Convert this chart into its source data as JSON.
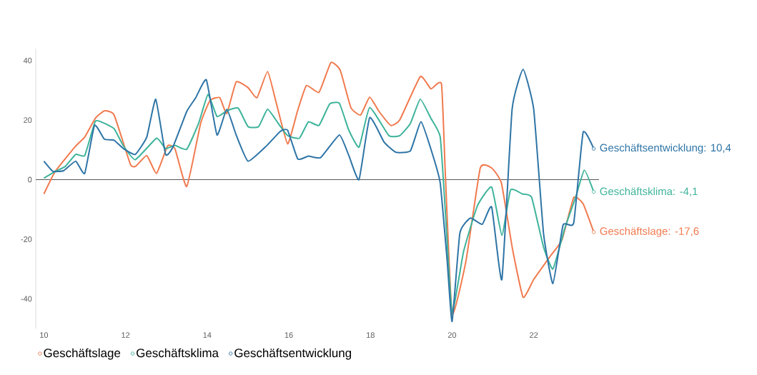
{
  "chart_data": {
    "type": "line",
    "series": [
      {
        "name": "Geschäftslage",
        "color": "#f07a4e",
        "x": [
          2010.0,
          2010.28,
          2010.78,
          2011.0,
          2011.26,
          2011.48,
          2011.72,
          2012.12,
          2012.26,
          2012.52,
          2012.76,
          2013.03,
          2013.21,
          2013.5,
          2013.84,
          2014.07,
          2014.31,
          2014.48,
          2014.71,
          2015.0,
          2015.22,
          2015.48,
          2015.69,
          2015.97,
          2016.21,
          2016.43,
          2016.74,
          2017.03,
          2017.26,
          2017.52,
          2017.76,
          2017.98,
          2018.21,
          2018.5,
          2018.72,
          2019.22,
          2019.48,
          2019.74,
          2019.83,
          2020.0,
          2020.34,
          2020.69,
          2020.97,
          2021.21,
          2021.48,
          2021.74,
          2022.0,
          2022.41,
          2022.69,
          2022.98,
          2023.21,
          2023.47
        ],
        "values": [
          -4.8,
          2.8,
          11.3,
          14.3,
          20.6,
          23.1,
          21.7,
          5.1,
          4.6,
          8.1,
          2.1,
          11.3,
          10.4,
          -2.3,
          18.9,
          26.6,
          27.5,
          22.2,
          32.8,
          30.9,
          27.5,
          36.3,
          25.9,
          12.0,
          22.9,
          31.6,
          29.3,
          39.3,
          36.7,
          24.2,
          21.7,
          27.7,
          22.9,
          18.2,
          20.1,
          34.6,
          30.5,
          32.1,
          3.5,
          -45.0,
          -27.3,
          3.9,
          3.9,
          -1.2,
          -23.3,
          -39.5,
          -33.5,
          -25.6,
          -20.3,
          -6.0,
          -8.1,
          -17.6
        ]
      },
      {
        "name": "Geschäftsklima",
        "color": "#3db39a",
        "x": [
          2010.0,
          2010.28,
          2010.52,
          2010.78,
          2011.0,
          2011.26,
          2011.48,
          2011.72,
          2011.95,
          2012.24,
          2012.76,
          2012.98,
          2013.21,
          2013.5,
          2013.79,
          2014.02,
          2014.24,
          2014.48,
          2014.76,
          2015.0,
          2015.26,
          2015.48,
          2015.74,
          2015.97,
          2016.26,
          2016.48,
          2016.74,
          2017.0,
          2017.24,
          2017.47,
          2017.72,
          2017.98,
          2018.45,
          2018.72,
          2018.98,
          2019.22,
          2019.48,
          2019.71,
          2019.84,
          2020.0,
          2020.28,
          2020.62,
          2020.97,
          2021.22,
          2021.43,
          2021.72,
          2021.95,
          2022.24,
          2022.47,
          2022.76,
          2023.03,
          2023.24,
          2023.47
        ],
        "values": [
          0.5,
          2.8,
          4.4,
          8.5,
          8.1,
          19.6,
          18.9,
          17.1,
          11.3,
          6.7,
          13.9,
          10.4,
          11.5,
          10.2,
          18.9,
          28.6,
          21.2,
          23.1,
          24.0,
          17.8,
          17.8,
          23.6,
          18.9,
          14.8,
          13.9,
          19.4,
          18.2,
          25.4,
          25.6,
          16.6,
          10.9,
          24.2,
          14.8,
          14.8,
          18.9,
          27.0,
          20.6,
          14.3,
          -11.8,
          -44.6,
          -24.2,
          -8.8,
          -2.5,
          -18.7,
          -3.5,
          -4.8,
          -6.0,
          -22.6,
          -30.0,
          -16.4,
          -5.8,
          3.2,
          -4.1
        ]
      },
      {
        "name": "Geschäftsentwicklung",
        "color": "#2e74a6",
        "x": [
          2010.0,
          2010.22,
          2010.48,
          2010.78,
          2011.0,
          2011.24,
          2011.48,
          2011.72,
          2011.95,
          2012.24,
          2012.52,
          2012.74,
          2012.98,
          2013.16,
          2013.5,
          2013.72,
          2013.98,
          2014.24,
          2014.48,
          2014.71,
          2015.0,
          2015.45,
          2015.79,
          2015.97,
          2016.22,
          2016.48,
          2016.78,
          2017.24,
          2017.47,
          2017.72,
          2017.98,
          2018.33,
          2018.62,
          2018.98,
          2019.24,
          2019.53,
          2019.71,
          2019.88,
          2020.0,
          2020.19,
          2020.45,
          2020.74,
          2020.97,
          2021.22,
          2021.47,
          2021.74,
          2022.0,
          2022.24,
          2022.47,
          2022.72,
          2022.98,
          2023.21,
          2023.47
        ],
        "values": [
          6.2,
          2.8,
          3.0,
          6.2,
          2.1,
          18.2,
          13.6,
          13.2,
          10.4,
          8.5,
          14.3,
          27.0,
          8.5,
          10.9,
          22.9,
          27.5,
          33.5,
          15.0,
          23.6,
          15.0,
          6.2,
          11.3,
          16.2,
          16.6,
          6.9,
          7.9,
          7.4,
          15.0,
          8.1,
          0,
          20.8,
          12.7,
          9.2,
          9.7,
          19.4,
          8.1,
          -1.2,
          -27.3,
          -47.6,
          -18.0,
          -12.9,
          -15.0,
          -9.2,
          -33.5,
          23.6,
          37.0,
          23.6,
          -18.0,
          -34.9,
          -15.2,
          -14.5,
          15.9,
          10.4
        ]
      }
    ],
    "xlim": [
      2009.8,
      2023.6
    ],
    "xticks": [
      {
        "value": 2010,
        "label": "10"
      },
      {
        "value": 2012,
        "label": "12"
      },
      {
        "value": 2014,
        "label": "14"
      },
      {
        "value": 2016,
        "label": "16"
      },
      {
        "value": 2018,
        "label": "18"
      },
      {
        "value": 2020,
        "label": "20"
      },
      {
        "value": 2022,
        "label": "22"
      }
    ],
    "ylim": [
      -50,
      44
    ],
    "yticks": [
      40,
      20,
      0,
      -20,
      -40
    ],
    "ref_lines": [
      {
        "axis": "y",
        "value": 0,
        "color": "#555555"
      }
    ],
    "annotations": [
      "Geschäftslage: -17,6",
      "Geschäftsklima: -4,1",
      "Geschäftsentwicklung: 10,4"
    ],
    "legend": "bottom left",
    "line_style": "solid"
  }
}
